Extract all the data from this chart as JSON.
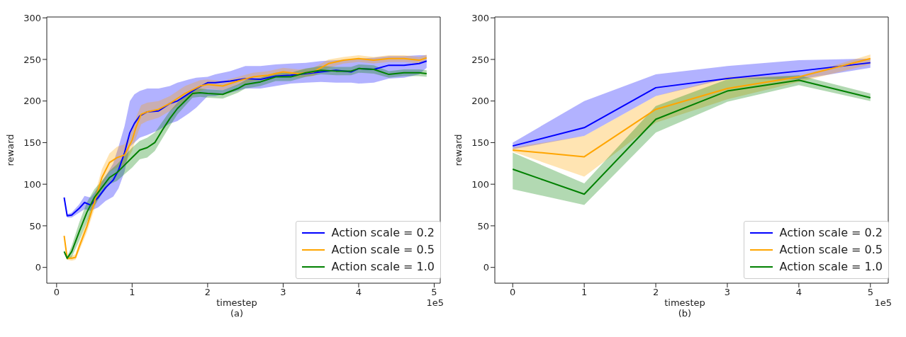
{
  "chart_data": [
    {
      "type": "line",
      "xlabel": "timestep",
      "ylabel": "reward",
      "annotations": [
        "1e5",
        "(a)"
      ],
      "xlim": [
        -0.13,
        5.08
      ],
      "xticks": [
        0,
        1,
        2,
        3,
        4,
        5
      ],
      "ylim": [
        -19,
        301
      ],
      "yticks": [
        0,
        50,
        100,
        150,
        200,
        250,
        300
      ],
      "grid": false,
      "legend": "bottom right",
      "series": [
        {
          "name": "Action scale = 0.2",
          "color": "#0000ff",
          "x": [
            0.1,
            0.14,
            0.2,
            0.3,
            0.37,
            0.45,
            0.55,
            0.65,
            0.75,
            0.82,
            0.9,
            0.97,
            1.03,
            1.1,
            1.2,
            1.35,
            1.5,
            1.6,
            1.75,
            1.85,
            2.0,
            2.1,
            2.3,
            2.5,
            2.7,
            2.9,
            3.1,
            3.3,
            3.5,
            3.7,
            3.9,
            4.0,
            4.2,
            4.4,
            4.6,
            4.8,
            4.9
          ],
          "values": [
            84,
            62,
            63,
            71,
            78,
            75,
            84,
            96,
            105,
            117,
            138,
            162,
            173,
            182,
            187,
            188,
            197,
            200,
            209,
            215,
            222,
            222,
            224,
            227,
            226,
            230,
            231,
            233,
            235,
            237,
            235,
            239,
            238,
            243,
            243,
            245,
            248
          ],
          "lower": [
            82,
            60,
            60,
            66,
            70,
            68,
            72,
            80,
            85,
            95,
            115,
            145,
            150,
            156,
            159,
            165,
            173,
            176,
            185,
            192,
            206,
            206,
            210,
            215,
            215,
            218,
            221,
            222,
            223,
            222,
            222,
            221,
            222,
            227,
            228,
            232,
            240
          ],
          "upper": [
            86,
            64,
            66,
            76,
            86,
            84,
            96,
            110,
            125,
            145,
            170,
            200,
            208,
            212,
            215,
            215,
            218,
            222,
            226,
            228,
            229,
            232,
            236,
            242,
            242,
            244,
            245,
            246,
            248,
            249,
            250,
            251,
            252,
            254,
            254,
            255,
            255
          ]
        },
        {
          "name": "Action scale = 0.5",
          "color": "#ffa500",
          "x": [
            0.1,
            0.14,
            0.2,
            0.25,
            0.3,
            0.4,
            0.5,
            0.6,
            0.7,
            0.8,
            0.9,
            1.0,
            1.05,
            1.12,
            1.2,
            1.35,
            1.5,
            1.7,
            1.9,
            2.0,
            2.2,
            2.4,
            2.6,
            2.8,
            3.0,
            3.2,
            3.4,
            3.6,
            3.8,
            4.0,
            4.2,
            4.4,
            4.6,
            4.8,
            4.9
          ],
          "values": [
            38,
            11,
            11,
            12,
            25,
            49,
            78,
            108,
            126,
            132,
            135,
            153,
            168,
            184,
            187,
            190,
            197,
            209,
            218,
            220,
            218,
            224,
            229,
            231,
            235,
            233,
            235,
            245,
            249,
            251,
            249,
            251,
            251,
            249,
            252
          ],
          "lower": [
            36,
            9,
            8,
            9,
            20,
            42,
            70,
            98,
            115,
            120,
            124,
            140,
            155,
            172,
            176,
            180,
            188,
            200,
            212,
            215,
            213,
            219,
            224,
            226,
            230,
            228,
            230,
            240,
            245,
            247,
            245,
            247,
            247,
            245,
            249
          ],
          "upper": [
            40,
            13,
            14,
            16,
            30,
            56,
            86,
            118,
            137,
            145,
            148,
            165,
            180,
            195,
            198,
            200,
            206,
            218,
            225,
            226,
            224,
            229,
            234,
            236,
            240,
            238,
            240,
            250,
            253,
            255,
            253,
            255,
            255,
            253,
            256
          ]
        },
        {
          "name": "Action scale = 1.0",
          "color": "#008000",
          "x": [
            0.1,
            0.14,
            0.2,
            0.3,
            0.4,
            0.5,
            0.6,
            0.7,
            0.8,
            0.9,
            1.0,
            1.1,
            1.2,
            1.3,
            1.4,
            1.5,
            1.6,
            1.7,
            1.8,
            1.9,
            2.0,
            2.2,
            2.4,
            2.5,
            2.7,
            2.9,
            3.1,
            3.3,
            3.5,
            3.7,
            3.9,
            4.0,
            4.2,
            4.4,
            4.6,
            4.8,
            4.9
          ],
          "values": [
            19,
            11,
            19,
            43,
            66,
            84,
            96,
            108,
            114,
            123,
            132,
            141,
            144,
            150,
            165,
            179,
            191,
            200,
            209,
            210,
            209,
            208,
            215,
            220,
            223,
            229,
            229,
            234,
            237,
            236,
            236,
            239,
            238,
            232,
            234,
            234,
            233
          ],
          "lower": [
            17,
            9,
            12,
            32,
            54,
            74,
            88,
            100,
            104,
            112,
            120,
            130,
            132,
            140,
            155,
            170,
            184,
            194,
            204,
            205,
            204,
            203,
            210,
            215,
            218,
            224,
            224,
            229,
            232,
            231,
            231,
            234,
            233,
            228,
            230,
            230,
            229
          ],
          "upper": [
            21,
            13,
            26,
            54,
            78,
            94,
            104,
            116,
            124,
            134,
            144,
            152,
            156,
            162,
            175,
            188,
            198,
            206,
            214,
            215,
            214,
            213,
            220,
            225,
            228,
            234,
            234,
            239,
            242,
            241,
            241,
            244,
            243,
            236,
            238,
            238,
            237
          ]
        }
      ]
    },
    {
      "type": "line",
      "xlabel": "timestep",
      "ylabel": "reward",
      "annotations": [
        "1e5",
        "(b)"
      ],
      "x": [
        0,
        1,
        2,
        3,
        4,
        5
      ],
      "xlim": [
        -0.25,
        5.25
      ],
      "xticks": [
        0,
        1,
        2,
        3,
        4,
        5
      ],
      "ylim": [
        -19,
        301
      ],
      "yticks": [
        0,
        50,
        100,
        150,
        200,
        250,
        300
      ],
      "grid": false,
      "legend": "bottom right",
      "series": [
        {
          "name": "Action scale = 0.2",
          "color": "#0000ff",
          "values": [
            146,
            168,
            216,
            227,
            236,
            246
          ],
          "lower": [
            142,
            158,
            206,
            227,
            226,
            240
          ],
          "upper": [
            150,
            200,
            232,
            242,
            249,
            251
          ]
        },
        {
          "name": "Action scale = 0.5",
          "color": "#ffa500",
          "values": [
            141,
            133,
            190,
            215,
            229,
            251
          ],
          "lower": [
            139,
            109,
            174,
            202,
            223,
            244
          ],
          "upper": [
            144,
            158,
            206,
            229,
            230,
            256
          ]
        },
        {
          "name": "Action scale = 1.0",
          "color": "#008000",
          "values": [
            118,
            88,
            178,
            212,
            225,
            204
          ],
          "lower": [
            94,
            75,
            162,
            199,
            219,
            200
          ],
          "upper": [
            138,
            101,
            194,
            226,
            231,
            209
          ]
        }
      ]
    }
  ]
}
